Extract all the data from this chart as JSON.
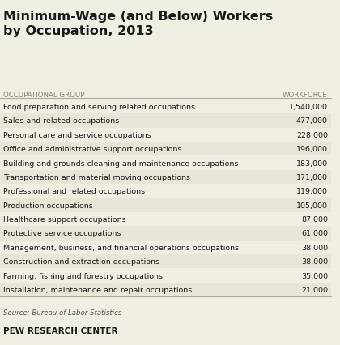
{
  "title": "Minimum-Wage (and Below) Workers\nby Occupation, 2013",
  "col_header_left": "OCCUPATIONAL GROUP",
  "col_header_right": "WORKFORCE",
  "rows": [
    [
      "Food preparation and serving related occupations",
      "1,540,000"
    ],
    [
      "Sales and related occupations",
      "477,000"
    ],
    [
      "Personal care and service occupations",
      "228,000"
    ],
    [
      "Office and administrative support occupations",
      "196,000"
    ],
    [
      "Building and grounds cleaning and maintenance occupations",
      "183,000"
    ],
    [
      "Transportation and material moving occupations",
      "171,000"
    ],
    [
      "Professional and related occupations",
      "119,000"
    ],
    [
      "Production occupations",
      "105,000"
    ],
    [
      "Healthcare support occupations",
      "87,000"
    ],
    [
      "Protective service occupations",
      "61,000"
    ],
    [
      "Management, business, and financial operations occupations",
      "38,000"
    ],
    [
      "Construction and extraction occupations",
      "38,000"
    ],
    [
      "Farming, fishing and forestry occupations",
      "35,000"
    ],
    [
      "Installation, maintenance and repair occupations",
      "21,000"
    ]
  ],
  "source_text": "Source: Bureau of Labor Statistics",
  "footer_text": "PEW RESEARCH CENTER",
  "bg_color": "#f0ede3",
  "row_bg_alt": "#e8e4d8",
  "row_bg_main": "#f0ede3",
  "header_line_color": "#b0a898",
  "text_color": "#1a1a1a",
  "header_text_color": "#8a7f72",
  "title_color": "#1a1a1a",
  "footer_color": "#1a1a1a",
  "source_color": "#555555"
}
